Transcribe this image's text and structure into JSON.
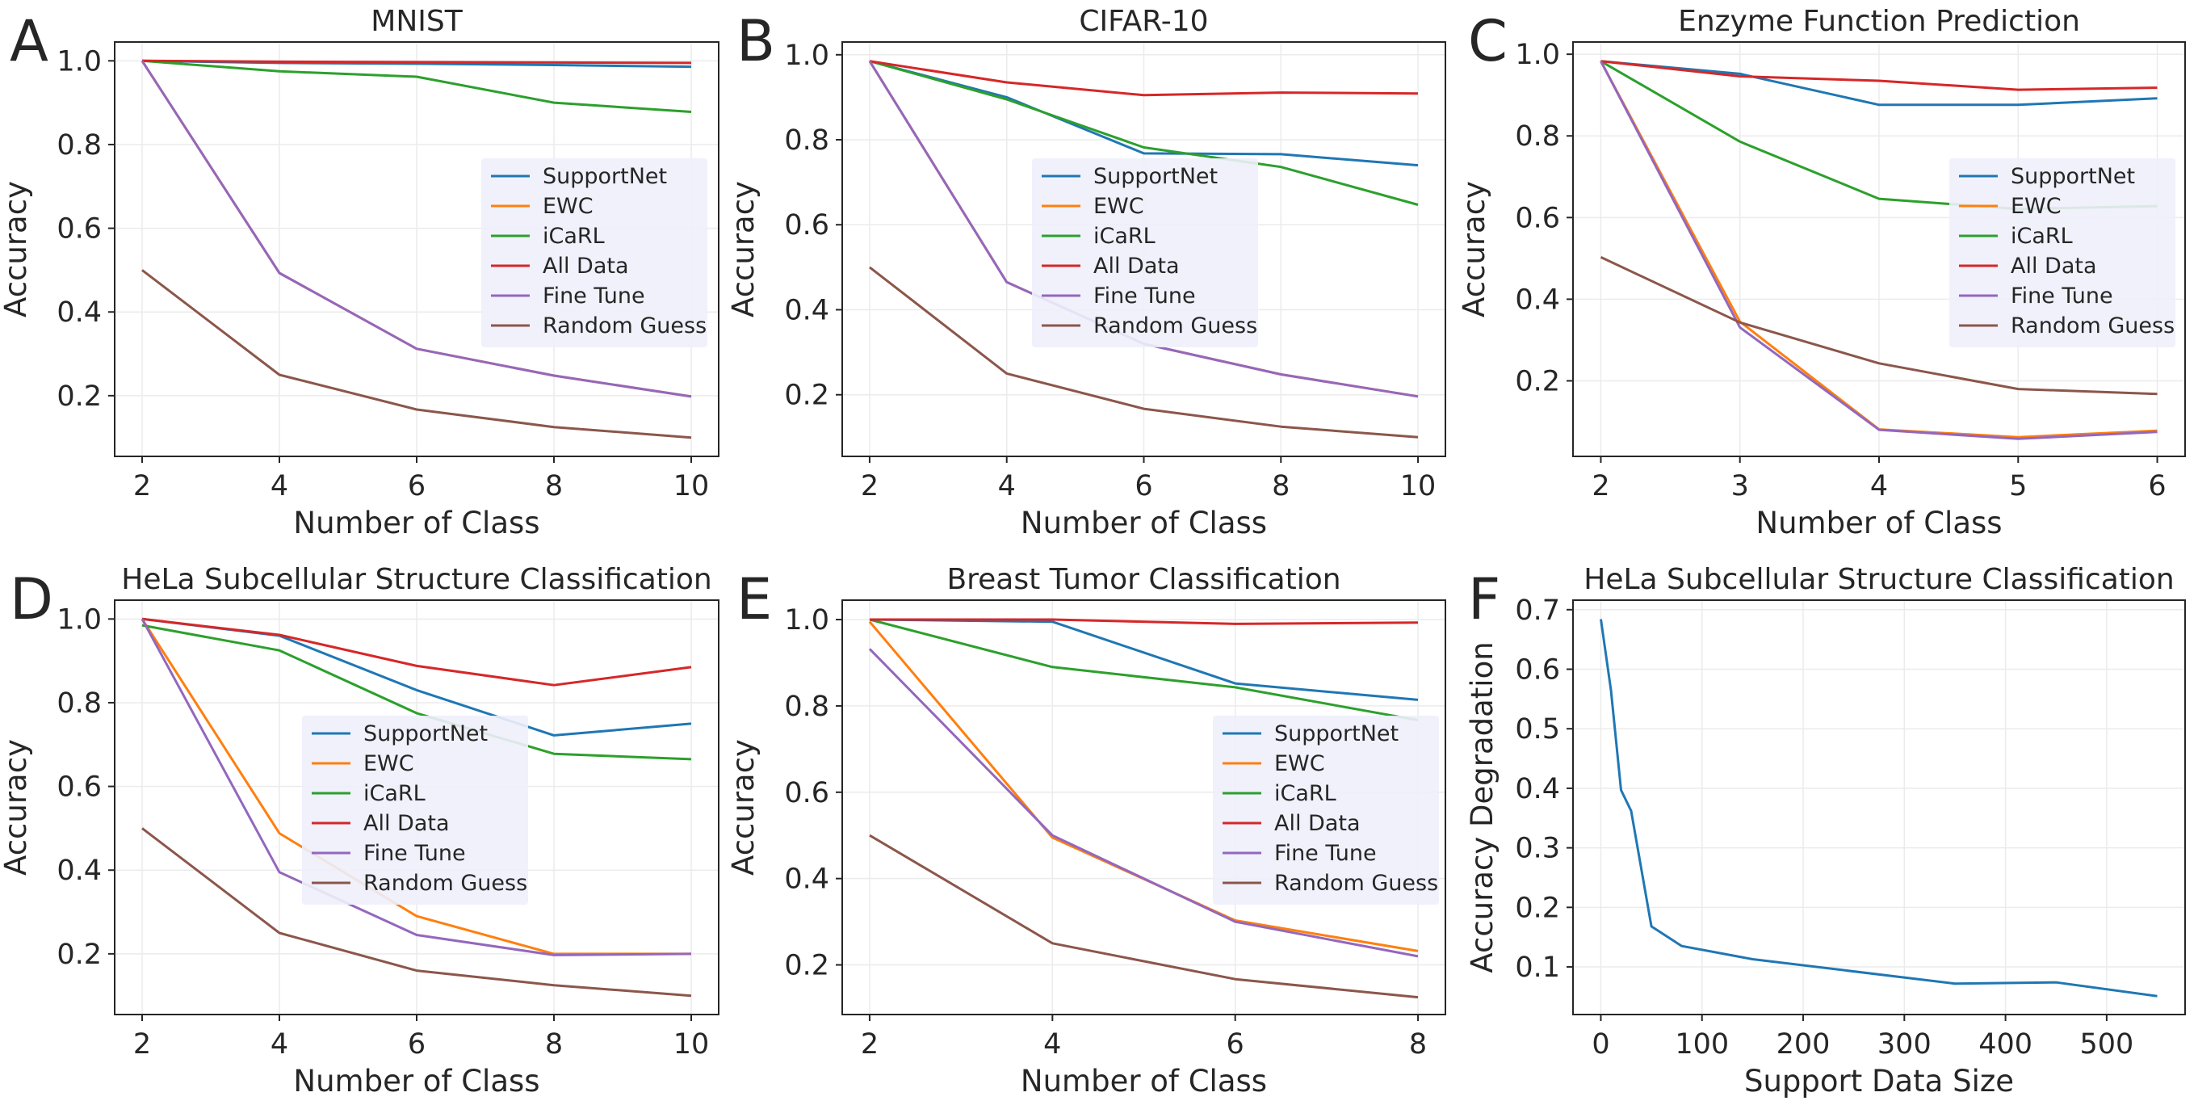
{
  "chart_data": [
    {
      "panel": "A",
      "type": "line",
      "title": "MNIST",
      "xlabel": "Number of Class",
      "ylabel": "Accuracy",
      "xlim": [
        1.6,
        10.4
      ],
      "ylim": [
        0.055,
        1.045
      ],
      "xticks": [
        2,
        4,
        6,
        8,
        10
      ],
      "yticks": [
        0.2,
        0.4,
        0.6,
        0.8,
        1.0
      ],
      "x": [
        2,
        4,
        6,
        8,
        10
      ],
      "legend": "center-right",
      "grid": true,
      "series": [
        {
          "name": "SupportNet",
          "color": "#1f77b4",
          "values": [
            1.0,
            0.995,
            0.993,
            0.99,
            0.986
          ]
        },
        {
          "name": "EWC",
          "color": "#ff7f0e",
          "values": [
            1.0,
            0.493,
            0.312,
            0.248,
            0.198
          ]
        },
        {
          "name": "iCaRL",
          "color": "#2ca02c",
          "values": [
            1.0,
            0.975,
            0.962,
            0.9,
            0.878
          ]
        },
        {
          "name": "All Data",
          "color": "#d62728",
          "values": [
            1.0,
            0.998,
            0.997,
            0.996,
            0.995
          ]
        },
        {
          "name": "Fine Tune",
          "color": "#9467bd",
          "values": [
            1.0,
            0.493,
            0.312,
            0.248,
            0.198
          ]
        },
        {
          "name": "Random Guess",
          "color": "#8c564b",
          "values": [
            0.5,
            0.25,
            0.167,
            0.125,
            0.1
          ]
        }
      ]
    },
    {
      "panel": "B",
      "type": "line",
      "title": "CIFAR-10",
      "xlabel": "Number of Class",
      "ylabel": "Accuracy",
      "xlim": [
        1.6,
        10.4
      ],
      "ylim": [
        0.055,
        1.03
      ],
      "xticks": [
        2,
        4,
        6,
        8,
        10
      ],
      "yticks": [
        0.2,
        0.4,
        0.6,
        0.8,
        1.0
      ],
      "x": [
        2,
        4,
        6,
        8,
        10
      ],
      "legend": "center",
      "grid": true,
      "series": [
        {
          "name": "SupportNet",
          "color": "#1f77b4",
          "values": [
            0.985,
            0.9,
            0.768,
            0.766,
            0.74
          ]
        },
        {
          "name": "EWC",
          "color": "#ff7f0e",
          "values": [
            0.985,
            0.465,
            0.32,
            0.248,
            0.196
          ]
        },
        {
          "name": "iCaRL",
          "color": "#2ca02c",
          "values": [
            0.985,
            0.895,
            0.782,
            0.736,
            0.647
          ]
        },
        {
          "name": "All Data",
          "color": "#d62728",
          "values": [
            0.985,
            0.935,
            0.905,
            0.911,
            0.909
          ]
        },
        {
          "name": "Fine Tune",
          "color": "#9467bd",
          "values": [
            0.985,
            0.465,
            0.32,
            0.248,
            0.196
          ]
        },
        {
          "name": "Random Guess",
          "color": "#8c564b",
          "values": [
            0.5,
            0.25,
            0.167,
            0.125,
            0.1
          ]
        }
      ]
    },
    {
      "panel": "C",
      "type": "line",
      "title": "Enzyme Function Prediction",
      "xlabel": "Number of Class",
      "ylabel": "Accuracy",
      "xlim": [
        1.8,
        6.2
      ],
      "ylim": [
        0.015,
        1.03
      ],
      "xticks": [
        2,
        3,
        4,
        5,
        6
      ],
      "yticks": [
        0.2,
        0.4,
        0.6,
        0.8,
        1.0
      ],
      "x": [
        2,
        3,
        4,
        5,
        6
      ],
      "legend": "center-right",
      "grid": true,
      "series": [
        {
          "name": "SupportNet",
          "color": "#1f77b4",
          "values": [
            0.983,
            0.952,
            0.876,
            0.876,
            0.892
          ]
        },
        {
          "name": "EWC",
          "color": "#ff7f0e",
          "values": [
            0.983,
            0.345,
            0.081,
            0.062,
            0.078
          ]
        },
        {
          "name": "iCaRL",
          "color": "#2ca02c",
          "values": [
            0.983,
            0.786,
            0.646,
            0.621,
            0.628
          ]
        },
        {
          "name": "All Data",
          "color": "#d62728",
          "values": [
            0.983,
            0.946,
            0.935,
            0.913,
            0.918
          ]
        },
        {
          "name": "Fine Tune",
          "color": "#9467bd",
          "values": [
            0.983,
            0.331,
            0.08,
            0.058,
            0.075
          ]
        },
        {
          "name": "Random Guess",
          "color": "#8c564b",
          "values": [
            0.503,
            0.343,
            0.243,
            0.18,
            0.168
          ]
        }
      ]
    },
    {
      "panel": "D",
      "type": "line",
      "title": "HeLa Subcellular Structure Classification",
      "xlabel": "Number of Class",
      "ylabel": "Accuracy",
      "xlim": [
        1.6,
        10.4
      ],
      "ylim": [
        0.055,
        1.045
      ],
      "xticks": [
        2,
        4,
        6,
        8,
        10
      ],
      "yticks": [
        0.2,
        0.4,
        0.6,
        0.8,
        1.0
      ],
      "x": [
        2,
        4,
        6,
        8,
        10
      ],
      "legend": "center",
      "grid": true,
      "series": [
        {
          "name": "SupportNet",
          "color": "#1f77b4",
          "values": [
            1.0,
            0.96,
            0.83,
            0.722,
            0.75
          ]
        },
        {
          "name": "EWC",
          "color": "#ff7f0e",
          "values": [
            1.0,
            0.488,
            0.29,
            0.2,
            0.2
          ]
        },
        {
          "name": "iCaRL",
          "color": "#2ca02c",
          "values": [
            0.985,
            0.925,
            0.775,
            0.678,
            0.665
          ]
        },
        {
          "name": "All Data",
          "color": "#d62728",
          "values": [
            1.0,
            0.962,
            0.888,
            0.842,
            0.885
          ]
        },
        {
          "name": "Fine Tune",
          "color": "#9467bd",
          "values": [
            1.0,
            0.395,
            0.245,
            0.197,
            0.2
          ]
        },
        {
          "name": "Random Guess",
          "color": "#8c564b",
          "values": [
            0.5,
            0.25,
            0.16,
            0.125,
            0.1
          ]
        }
      ]
    },
    {
      "panel": "E",
      "type": "line",
      "title": "Breast Tumor Classification",
      "xlabel": "Number of Class",
      "ylabel": "Accuracy",
      "xlim": [
        1.7,
        8.3
      ],
      "ylim": [
        0.085,
        1.045
      ],
      "xticks": [
        2,
        4,
        6,
        8
      ],
      "yticks": [
        0.2,
        0.4,
        0.6,
        0.8,
        1.0
      ],
      "x": [
        2,
        4,
        6,
        8
      ],
      "legend": "center-right",
      "grid": true,
      "series": [
        {
          "name": "SupportNet",
          "color": "#1f77b4",
          "values": [
            1.0,
            0.995,
            0.852,
            0.814
          ]
        },
        {
          "name": "EWC",
          "color": "#ff7f0e",
          "values": [
            0.995,
            0.495,
            0.303,
            0.232
          ]
        },
        {
          "name": "iCaRL",
          "color": "#2ca02c",
          "values": [
            1.0,
            0.89,
            0.843,
            0.767
          ]
        },
        {
          "name": "All Data",
          "color": "#d62728",
          "values": [
            1.0,
            1.0,
            0.99,
            0.993
          ]
        },
        {
          "name": "Fine Tune",
          "color": "#9467bd",
          "values": [
            0.932,
            0.5,
            0.3,
            0.22
          ]
        },
        {
          "name": "Random Guess",
          "color": "#8c564b",
          "values": [
            0.5,
            0.25,
            0.167,
            0.125
          ]
        }
      ]
    },
    {
      "panel": "F",
      "type": "line",
      "title": "HeLa Subcellular Structure Classification",
      "xlabel": "Support Data Size",
      "ylabel": "Accuracy Degradation",
      "xlim": [
        -27.5,
        577.5
      ],
      "ylim": [
        0.02,
        0.716
      ],
      "xticks": [
        0,
        100,
        200,
        300,
        400,
        500
      ],
      "yticks": [
        0.1,
        0.2,
        0.3,
        0.4,
        0.5,
        0.6,
        0.7
      ],
      "legend": "none",
      "grid": true,
      "series": [
        {
          "name": "",
          "color": "#1f77b4",
          "x": [
            0,
            10,
            20,
            30,
            50,
            80,
            150,
            350,
            450,
            550
          ],
          "values": [
            0.684,
            0.565,
            0.397,
            0.362,
            0.168,
            0.135,
            0.113,
            0.072,
            0.074,
            0.051
          ]
        }
      ]
    }
  ]
}
